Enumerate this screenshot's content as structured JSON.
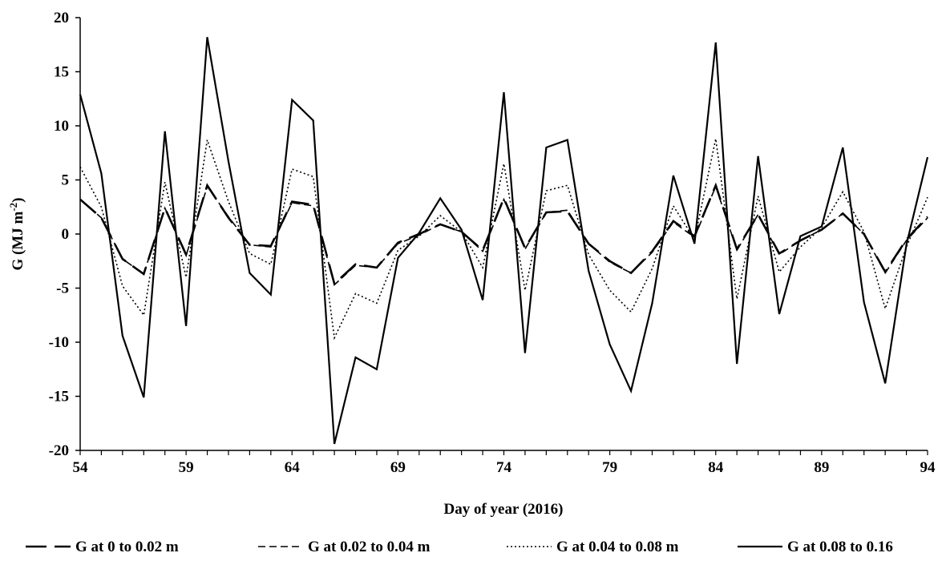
{
  "chart_data": {
    "type": "line",
    "xlabel": "Day of year (2016)",
    "ylabel_parts": {
      "base": "G (MJ m",
      "sup": "-2",
      "tail": ")"
    },
    "xlim": [
      54,
      94
    ],
    "ylim": [
      -20,
      20
    ],
    "x_ticks": [
      54,
      59,
      64,
      69,
      74,
      79,
      84,
      89,
      94
    ],
    "y_ticks": [
      -20,
      -15,
      -10,
      -5,
      0,
      5,
      10,
      15,
      20
    ],
    "grid": false,
    "legend_position": "bottom",
    "x": [
      54,
      55,
      56,
      57,
      58,
      59,
      60,
      61,
      62,
      63,
      64,
      65,
      66,
      67,
      68,
      69,
      70,
      71,
      72,
      73,
      74,
      75,
      76,
      77,
      78,
      79,
      80,
      81,
      82,
      83,
      84,
      85,
      86,
      87,
      88,
      89,
      90,
      91,
      92,
      93,
      94
    ],
    "series": [
      {
        "name": "G at 0 to 0.02 m",
        "dash": "long-dash",
        "values": [
          3.2,
          1.5,
          -2.3,
          -3.7,
          2.4,
          -1.9,
          4.5,
          1.5,
          -1.0,
          -1.1,
          3.0,
          2.7,
          -4.6,
          -2.8,
          -3.1,
          -0.8,
          0.0,
          0.9,
          0.2,
          -1.5,
          3.3,
          -1.3,
          2.0,
          2.1,
          -0.9,
          -2.5,
          -3.6,
          -1.6,
          1.2,
          -0.2,
          4.5,
          -1.4,
          1.8,
          -1.8,
          -0.6,
          0.4,
          1.9,
          0.0,
          -3.5,
          -0.5,
          1.6
        ]
      },
      {
        "name": "G at 0.02 to 0.04 m",
        "dash": "dash",
        "values": [
          3.2,
          1.5,
          -2.3,
          -3.7,
          2.4,
          -2.0,
          4.4,
          1.6,
          -1.0,
          -1.2,
          2.9,
          2.6,
          -4.7,
          -2.9,
          -3.1,
          -0.9,
          -0.1,
          0.9,
          0.2,
          -1.6,
          3.2,
          -1.4,
          2.0,
          2.2,
          -0.9,
          -2.6,
          -3.6,
          -1.7,
          1.1,
          -0.3,
          4.4,
          -1.5,
          1.8,
          -1.9,
          -0.6,
          0.4,
          1.9,
          0.0,
          -3.6,
          -0.6,
          1.5
        ]
      },
      {
        "name": "G at 0.04 to 0.08 m",
        "dash": "dot",
        "values": [
          6.2,
          2.5,
          -4.8,
          -7.5,
          4.8,
          -4.0,
          8.7,
          3.0,
          -1.8,
          -2.8,
          6.0,
          5.3,
          -9.6,
          -5.5,
          -6.4,
          -1.5,
          -0.2,
          1.7,
          0.2,
          -3.1,
          6.5,
          -5.2,
          4.0,
          4.5,
          -1.9,
          -5.2,
          -7.2,
          -3.2,
          2.6,
          -0.5,
          8.8,
          -6.0,
          3.5,
          -3.5,
          -1.2,
          0.6,
          3.9,
          0.2,
          -6.9,
          -1.2,
          3.4
        ]
      },
      {
        "name": "G at 0.08 to 0.16",
        "dash": "solid",
        "values": [
          12.9,
          5.6,
          -9.4,
          -15.1,
          9.5,
          -8.5,
          18.2,
          6.7,
          -3.6,
          -5.6,
          12.4,
          10.5,
          -19.4,
          -11.4,
          -12.5,
          -2.2,
          0.1,
          3.3,
          0.4,
          -6.1,
          13.1,
          -11.0,
          8.0,
          8.7,
          -3.4,
          -10.2,
          -14.5,
          -6.4,
          5.4,
          -0.9,
          17.7,
          -12.0,
          7.2,
          -7.4,
          -0.2,
          0.7,
          8.0,
          -6.3,
          -13.8,
          -1.0,
          7.1
        ]
      }
    ]
  }
}
